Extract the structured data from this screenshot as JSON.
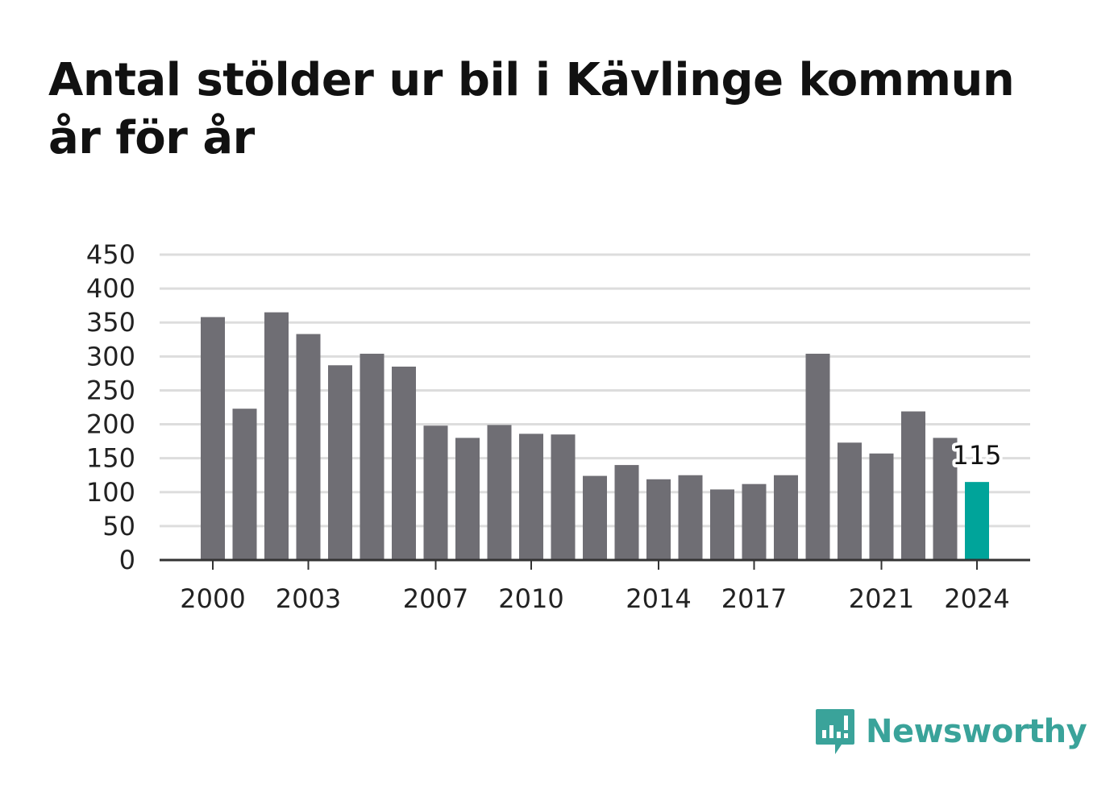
{
  "title": "Antal stölder ur bil i Kävlinge kommun år för år",
  "brand": {
    "name": "Newsworthy",
    "color": "#3aa39a",
    "icon": "bar-chart-speech-icon"
  },
  "chart_data": {
    "type": "bar",
    "title": "Antal stölder ur bil i Kävlinge kommun år för år",
    "xlabel": "",
    "ylabel": "",
    "x": [
      2000,
      2001,
      2002,
      2003,
      2004,
      2005,
      2006,
      2007,
      2008,
      2009,
      2010,
      2011,
      2012,
      2013,
      2014,
      2015,
      2016,
      2017,
      2018,
      2019,
      2020,
      2021,
      2022,
      2023,
      2024
    ],
    "values": [
      358,
      223,
      365,
      333,
      287,
      304,
      285,
      198,
      180,
      199,
      186,
      185,
      124,
      140,
      119,
      125,
      104,
      112,
      125,
      304,
      173,
      157,
      219,
      180,
      115
    ],
    "ylim": [
      0,
      450
    ],
    "yticks": [
      0,
      50,
      100,
      150,
      200,
      250,
      300,
      350,
      400,
      450
    ],
    "xticks": [
      2000,
      2003,
      2007,
      2010,
      2014,
      2017,
      2021,
      2024
    ],
    "highlight": {
      "x": 2024,
      "label": "115"
    },
    "colors": {
      "bar": "#6f6e74",
      "highlight": "#00a49a",
      "grid": "#dddddd",
      "axis": "#333333"
    },
    "grid": true
  }
}
